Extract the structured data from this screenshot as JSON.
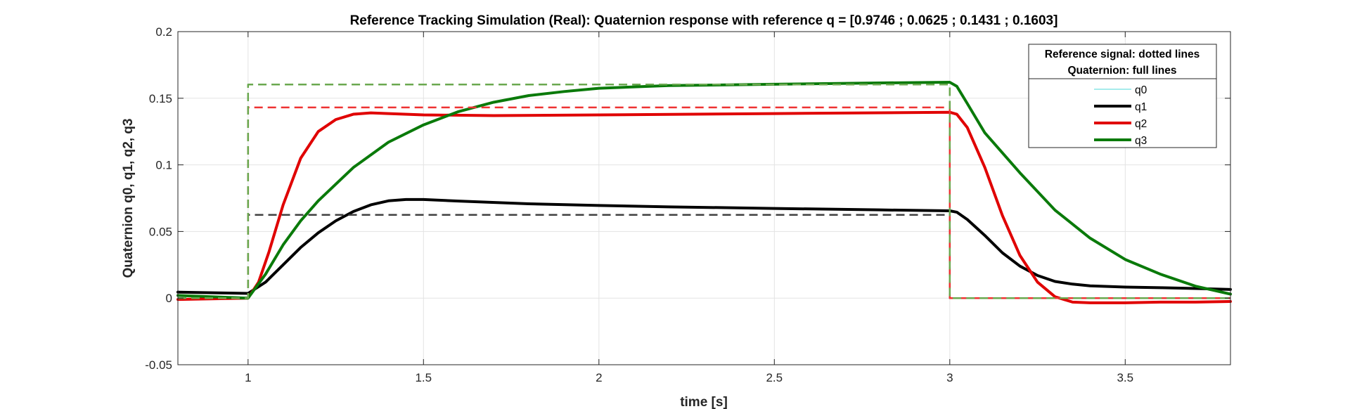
{
  "chart_data": {
    "type": "line",
    "title": "Reference Tracking Simulation (Real): Quaternion response with reference q = [0.9746 ; 0.0625 ; 0.1431 ; 0.1603]",
    "xlabel": "time [s]",
    "ylabel": "Quaternion q0, q1, q2, q3",
    "xlim": [
      0.8,
      3.8
    ],
    "ylim": [
      -0.05,
      0.2
    ],
    "xticks": [
      1,
      1.5,
      2,
      2.5,
      3,
      3.5
    ],
    "xtick_labels": [
      "1",
      "1.5",
      "2",
      "2.5",
      "3",
      "3.5"
    ],
    "yticks": [
      -0.05,
      0,
      0.05,
      0.1,
      0.15,
      0.2
    ],
    "ytick_labels": [
      "-0.05",
      "0",
      "0.05",
      "0.1",
      "0.15",
      "0.2"
    ],
    "grid": true,
    "legend": {
      "placement": "top-right",
      "header_line1": "Reference signal: dotted lines",
      "header_line2": "Quaternion: full lines",
      "entries": [
        "q0",
        "q1",
        "q2",
        "q3"
      ]
    },
    "series": [
      {
        "name": "q0",
        "style": "solid",
        "color": "#4dd9d9",
        "width": 1,
        "in_view": false,
        "x": [],
        "y": []
      },
      {
        "name": "q1",
        "style": "solid",
        "color": "#000000",
        "width": 4,
        "x": [
          0.8,
          1.0,
          1.05,
          1.1,
          1.15,
          1.2,
          1.25,
          1.3,
          1.35,
          1.4,
          1.45,
          1.5,
          1.6,
          1.8,
          2.0,
          2.2,
          2.5,
          2.8,
          3.0,
          3.02,
          3.05,
          3.1,
          3.15,
          3.2,
          3.25,
          3.3,
          3.35,
          3.4,
          3.5,
          3.6,
          3.7,
          3.8
        ],
        "y": [
          0.0045,
          0.0035,
          0.012,
          0.025,
          0.038,
          0.049,
          0.058,
          0.065,
          0.07,
          0.073,
          0.074,
          0.074,
          0.0728,
          0.0708,
          0.0695,
          0.0685,
          0.0673,
          0.0662,
          0.0655,
          0.0645,
          0.059,
          0.047,
          0.034,
          0.024,
          0.017,
          0.0125,
          0.0105,
          0.0092,
          0.0083,
          0.0078,
          0.0072,
          0.0065
        ]
      },
      {
        "name": "q2",
        "style": "solid",
        "color": "#e00000",
        "width": 4,
        "x": [
          0.8,
          1.0,
          1.03,
          1.06,
          1.1,
          1.15,
          1.2,
          1.25,
          1.3,
          1.35,
          1.4,
          1.5,
          1.7,
          2.0,
          2.5,
          3.0,
          3.02,
          3.05,
          3.1,
          3.15,
          3.2,
          3.25,
          3.3,
          3.35,
          3.4,
          3.5,
          3.6,
          3.7,
          3.8
        ],
        "y": [
          -0.001,
          0.0,
          0.012,
          0.035,
          0.07,
          0.105,
          0.125,
          0.134,
          0.138,
          0.139,
          0.1385,
          0.1375,
          0.137,
          0.1375,
          0.1385,
          0.1395,
          0.138,
          0.128,
          0.098,
          0.062,
          0.032,
          0.012,
          0.001,
          -0.003,
          -0.0035,
          -0.0035,
          -0.003,
          -0.003,
          -0.0025
        ]
      },
      {
        "name": "q3",
        "style": "solid",
        "color": "#0a7a0a",
        "width": 4,
        "x": [
          0.8,
          1.0,
          1.05,
          1.1,
          1.15,
          1.2,
          1.3,
          1.4,
          1.5,
          1.6,
          1.7,
          1.8,
          1.9,
          2.0,
          2.2,
          2.5,
          2.8,
          3.0,
          3.02,
          3.05,
          3.1,
          3.2,
          3.3,
          3.4,
          3.5,
          3.6,
          3.7,
          3.8
        ],
        "y": [
          0.002,
          0.0,
          0.018,
          0.04,
          0.058,
          0.073,
          0.098,
          0.117,
          0.13,
          0.14,
          0.147,
          0.152,
          0.155,
          0.1575,
          0.1595,
          0.1605,
          0.1615,
          0.162,
          0.159,
          0.146,
          0.124,
          0.094,
          0.066,
          0.045,
          0.029,
          0.018,
          0.009,
          0.003
        ]
      },
      {
        "name": "q1 reference",
        "style": "dashed",
        "color": "#404040",
        "width": 2.5,
        "x": [
          0.8,
          1.0,
          1.0,
          3.0,
          3.0,
          3.8
        ],
        "y": [
          0.0,
          0.0,
          0.0625,
          0.0625,
          0.0,
          0.0
        ]
      },
      {
        "name": "q2 reference",
        "style": "dashed",
        "color": "#ee3333",
        "width": 2.5,
        "x": [
          0.8,
          1.0,
          1.0,
          3.0,
          3.0,
          3.8
        ],
        "y": [
          0.0,
          0.0,
          0.1431,
          0.1431,
          0.0,
          0.0
        ]
      },
      {
        "name": "q3 reference",
        "style": "dashed",
        "color": "#6aa84f",
        "width": 2.5,
        "x": [
          0.8,
          1.0,
          1.0,
          3.0,
          3.0,
          3.8
        ],
        "y": [
          0.0,
          0.0,
          0.1603,
          0.1603,
          0.0,
          0.0
        ]
      }
    ]
  }
}
